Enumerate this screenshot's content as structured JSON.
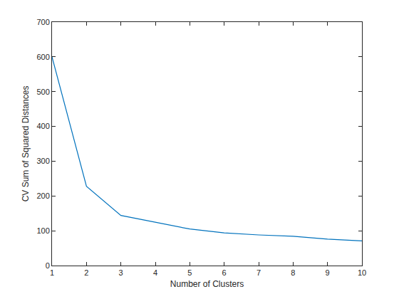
{
  "chart_data": {
    "type": "line",
    "x_label": "Number of Clusters",
    "y_label": "CV Sum of Squared Distances",
    "x": [
      1,
      2,
      3,
      4,
      5,
      6,
      7,
      8,
      9,
      10
    ],
    "values": [
      600,
      228,
      144,
      125,
      105,
      94,
      88,
      84,
      76,
      71
    ],
    "color": "#0072bd",
    "xlim": [
      1,
      10
    ],
    "xticks": [
      1,
      2,
      3,
      4,
      5,
      6,
      7,
      8,
      9,
      10
    ],
    "ylim": [
      0,
      700
    ],
    "yticks": [
      0,
      100,
      200,
      300,
      400,
      500,
      600,
      700
    ],
    "grid": false
  }
}
